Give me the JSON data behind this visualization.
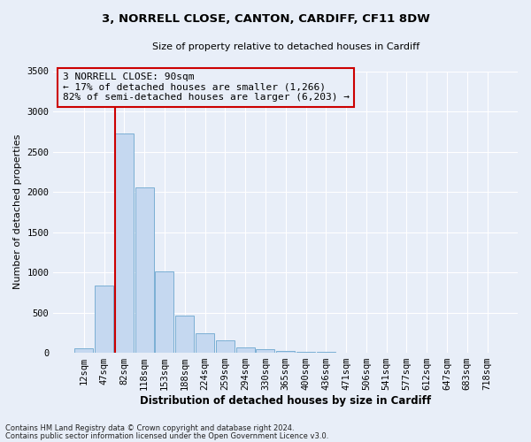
{
  "title": "3, NORRELL CLOSE, CANTON, CARDIFF, CF11 8DW",
  "subtitle": "Size of property relative to detached houses in Cardiff",
  "xlabel": "Distribution of detached houses by size in Cardiff",
  "ylabel": "Number of detached properties",
  "bar_color": "#c5d8f0",
  "bar_edge_color": "#7bafd4",
  "background_color": "#e8eef8",
  "grid_color": "#ffffff",
  "categories": [
    "12sqm",
    "47sqm",
    "82sqm",
    "118sqm",
    "153sqm",
    "188sqm",
    "224sqm",
    "259sqm",
    "294sqm",
    "330sqm",
    "365sqm",
    "400sqm",
    "436sqm",
    "471sqm",
    "506sqm",
    "541sqm",
    "577sqm",
    "612sqm",
    "647sqm",
    "683sqm",
    "718sqm"
  ],
  "values": [
    55,
    840,
    2720,
    2050,
    1010,
    460,
    240,
    155,
    65,
    40,
    25,
    15,
    8,
    5,
    3,
    2,
    2,
    0,
    0,
    0,
    0
  ],
  "ylim": [
    0,
    3500
  ],
  "yticks": [
    0,
    500,
    1000,
    1500,
    2000,
    2500,
    3000,
    3500
  ],
  "property_line_x": 2.0,
  "property_label": "3 NORRELL CLOSE: 90sqm",
  "annotation_line1": "← 17% of detached houses are smaller (1,266)",
  "annotation_line2": "82% of semi-detached houses are larger (6,203) →",
  "footer1": "Contains HM Land Registry data © Crown copyright and database right 2024.",
  "footer2": "Contains public sector information licensed under the Open Government Licence v3.0.",
  "red_line_color": "#cc0000",
  "annotation_box_edge": "#cc0000",
  "title_fontsize": 9.5,
  "subtitle_fontsize": 8,
  "ylabel_fontsize": 8,
  "xlabel_fontsize": 8.5,
  "tick_fontsize": 7.5,
  "annotation_fontsize": 8,
  "footer_fontsize": 6
}
